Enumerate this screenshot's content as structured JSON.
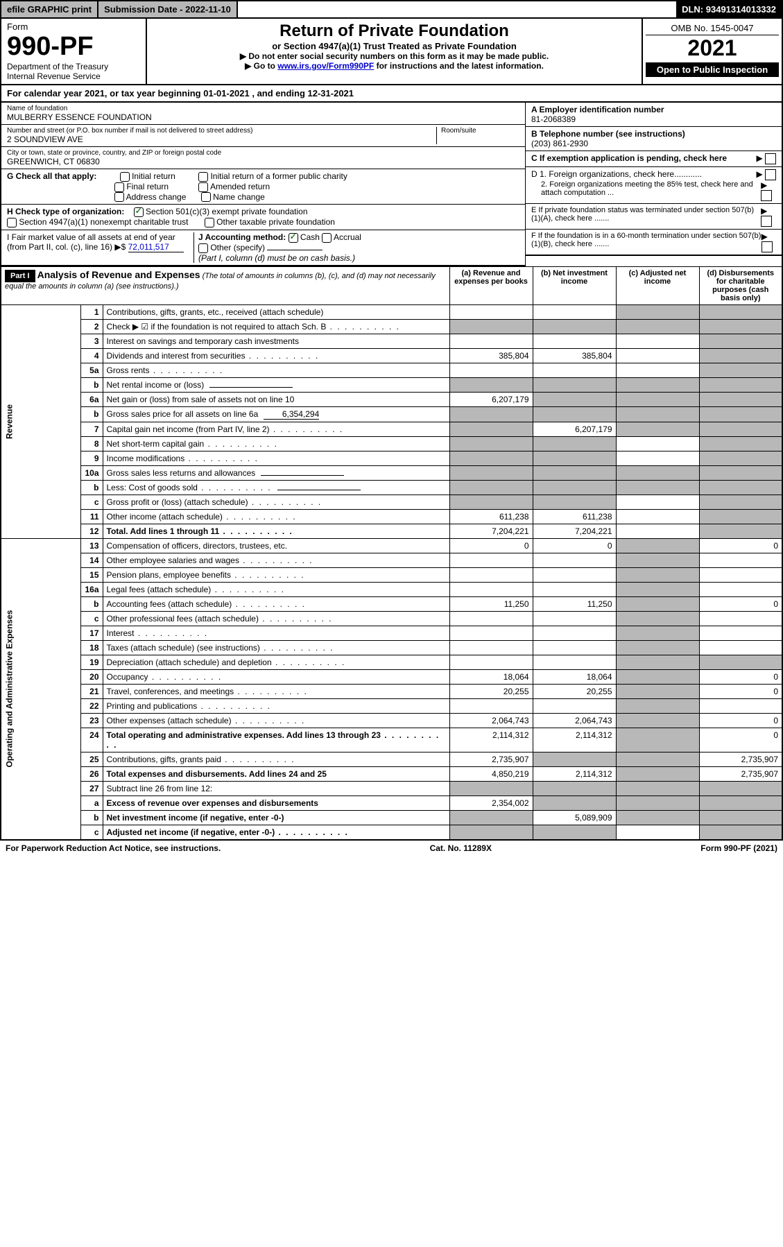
{
  "top": {
    "efile": "efile GRAPHIC print",
    "subdate_label": "Submission Date - ",
    "subdate": "2022-11-10",
    "dln_label": "DLN: ",
    "dln": "93491314013332"
  },
  "header": {
    "form_label": "Form",
    "form_no": "990-PF",
    "dept1": "Department of the Treasury",
    "dept2": "Internal Revenue Service",
    "title": "Return of Private Foundation",
    "subtitle": "or Section 4947(a)(1) Trust Treated as Private Foundation",
    "instr1": "▶ Do not enter social security numbers on this form as it may be made public.",
    "instr2_pre": "▶ Go to ",
    "instr2_link": "www.irs.gov/Form990PF",
    "instr2_post": " for instructions and the latest information.",
    "omb": "OMB No. 1545-0047",
    "year": "2021",
    "open_pub": "Open to Public Inspection"
  },
  "cal_year": {
    "pre": "For calendar year 2021, or tax year beginning ",
    "begin": "01-01-2021",
    "mid": " , and ending ",
    "end": "12-31-2021"
  },
  "foundation": {
    "name_label": "Name of foundation",
    "name": "MULBERRY ESSENCE FOUNDATION",
    "addr_label": "Number and street (or P.O. box number if mail is not delivered to street address)",
    "addr": "2 SOUNDVIEW AVE",
    "room_label": "Room/suite",
    "city_label": "City or town, state or province, country, and ZIP or foreign postal code",
    "city": "GREENWICH, CT  06830",
    "ein_label": "A Employer identification number",
    "ein": "81-2068389",
    "phone_label": "B Telephone number (see instructions)",
    "phone": "(203) 861-2930",
    "c_label": "C If exemption application is pending, check here"
  },
  "checks": {
    "g_label": "G Check all that apply:",
    "g1": "Initial return",
    "g2": "Initial return of a former public charity",
    "g3": "Final return",
    "g4": "Amended return",
    "g5": "Address change",
    "g6": "Name change",
    "h_label": "H Check type of organization:",
    "h1": "Section 501(c)(3) exempt private foundation",
    "h2": "Section 4947(a)(1) nonexempt charitable trust",
    "h3": "Other taxable private foundation",
    "i_label": "I Fair market value of all assets at end of year (from Part II, col. (c), line 16)",
    "i_val": "72,011,517",
    "j_label": "J Accounting method:",
    "j1": "Cash",
    "j2": "Accrual",
    "j3": "Other (specify)",
    "j_note": "(Part I, column (d) must be on cash basis.)",
    "d1": "D 1. Foreign organizations, check here............",
    "d2": "2. Foreign organizations meeting the 85% test, check here and attach computation ...",
    "e": "E If private foundation status was terminated under section 507(b)(1)(A), check here .......",
    "f": "F If the foundation is in a 60-month termination under section 507(b)(1)(B), check here ......."
  },
  "part1": {
    "hdr": "Part I",
    "title": "Analysis of Revenue and Expenses",
    "note": "(The total of amounts in columns (b), (c), and (d) may not necessarily equal the amounts in column (a) (see instructions).)",
    "col_a": "(a) Revenue and expenses per books",
    "col_b": "(b) Net investment income",
    "col_c": "(c) Adjusted net income",
    "col_d": "(d) Disbursements for charitable purposes (cash basis only)"
  },
  "sections": {
    "revenue": "Revenue",
    "expenses": "Operating and Administrative Expenses"
  },
  "rows": [
    {
      "n": "1",
      "d": "Contributions, gifts, grants, etc., received (attach schedule)",
      "a": "",
      "b": "",
      "c": "g",
      "dd": "g"
    },
    {
      "n": "2",
      "d": "Check ▶ ☑ if the foundation is not required to attach Sch. B",
      "dots": true,
      "a": "g",
      "b": "g",
      "c": "g",
      "dd": "g"
    },
    {
      "n": "3",
      "d": "Interest on savings and temporary cash investments",
      "a": "",
      "b": "",
      "c": "",
      "dd": "g"
    },
    {
      "n": "4",
      "d": "Dividends and interest from securities",
      "dots": true,
      "a": "385,804",
      "b": "385,804",
      "c": "",
      "dd": "g"
    },
    {
      "n": "5a",
      "d": "Gross rents",
      "dots": true,
      "a": "",
      "b": "",
      "c": "",
      "dd": "g"
    },
    {
      "n": "b",
      "d": "Net rental income or (loss)",
      "inline": true,
      "a": "g",
      "b": "g",
      "c": "g",
      "dd": "g"
    },
    {
      "n": "6a",
      "d": "Net gain or (loss) from sale of assets not on line 10",
      "a": "6,207,179",
      "b": "g",
      "c": "g",
      "dd": "g"
    },
    {
      "n": "b",
      "d": "Gross sales price for all assets on line 6a",
      "inline": "6,354,294",
      "a": "g",
      "b": "g",
      "c": "g",
      "dd": "g"
    },
    {
      "n": "7",
      "d": "Capital gain net income (from Part IV, line 2)",
      "dots": true,
      "a": "g",
      "b": "6,207,179",
      "c": "g",
      "dd": "g"
    },
    {
      "n": "8",
      "d": "Net short-term capital gain",
      "dots": true,
      "a": "g",
      "b": "g",
      "c": "",
      "dd": "g"
    },
    {
      "n": "9",
      "d": "Income modifications",
      "dots": true,
      "a": "g",
      "b": "g",
      "c": "",
      "dd": "g"
    },
    {
      "n": "10a",
      "d": "Gross sales less returns and allowances",
      "inline": true,
      "a": "g",
      "b": "g",
      "c": "g",
      "dd": "g"
    },
    {
      "n": "b",
      "d": "Less: Cost of goods sold",
      "dots": true,
      "inline": true,
      "a": "g",
      "b": "g",
      "c": "g",
      "dd": "g"
    },
    {
      "n": "c",
      "d": "Gross profit or (loss) (attach schedule)",
      "dots": true,
      "a": "g",
      "b": "g",
      "c": "",
      "dd": "g"
    },
    {
      "n": "11",
      "d": "Other income (attach schedule)",
      "dots": true,
      "a": "611,238",
      "b": "611,238",
      "c": "",
      "dd": "g"
    },
    {
      "n": "12",
      "d": "Total. Add lines 1 through 11",
      "dots": true,
      "bold": true,
      "a": "7,204,221",
      "b": "7,204,221",
      "c": "",
      "dd": "g"
    },
    {
      "n": "13",
      "d": "Compensation of officers, directors, trustees, etc.",
      "sec": "exp",
      "a": "0",
      "b": "0",
      "c": "g",
      "dd": "0"
    },
    {
      "n": "14",
      "d": "Other employee salaries and wages",
      "dots": true,
      "a": "",
      "b": "",
      "c": "g",
      "dd": ""
    },
    {
      "n": "15",
      "d": "Pension plans, employee benefits",
      "dots": true,
      "a": "",
      "b": "",
      "c": "g",
      "dd": ""
    },
    {
      "n": "16a",
      "d": "Legal fees (attach schedule)",
      "dots": true,
      "a": "",
      "b": "",
      "c": "g",
      "dd": ""
    },
    {
      "n": "b",
      "d": "Accounting fees (attach schedule)",
      "dots": true,
      "a": "11,250",
      "b": "11,250",
      "c": "g",
      "dd": "0"
    },
    {
      "n": "c",
      "d": "Other professional fees (attach schedule)",
      "dots": true,
      "a": "",
      "b": "",
      "c": "g",
      "dd": ""
    },
    {
      "n": "17",
      "d": "Interest",
      "dots": true,
      "a": "",
      "b": "",
      "c": "g",
      "dd": ""
    },
    {
      "n": "18",
      "d": "Taxes (attach schedule) (see instructions)",
      "dots": true,
      "a": "",
      "b": "",
      "c": "g",
      "dd": ""
    },
    {
      "n": "19",
      "d": "Depreciation (attach schedule) and depletion",
      "dots": true,
      "a": "",
      "b": "",
      "c": "g",
      "dd": "g"
    },
    {
      "n": "20",
      "d": "Occupancy",
      "dots": true,
      "a": "18,064",
      "b": "18,064",
      "c": "g",
      "dd": "0"
    },
    {
      "n": "21",
      "d": "Travel, conferences, and meetings",
      "dots": true,
      "a": "20,255",
      "b": "20,255",
      "c": "g",
      "dd": "0"
    },
    {
      "n": "22",
      "d": "Printing and publications",
      "dots": true,
      "a": "",
      "b": "",
      "c": "g",
      "dd": ""
    },
    {
      "n": "23",
      "d": "Other expenses (attach schedule)",
      "dots": true,
      "a": "2,064,743",
      "b": "2,064,743",
      "c": "g",
      "dd": "0"
    },
    {
      "n": "24",
      "d": "Total operating and administrative expenses. Add lines 13 through 23",
      "dots": true,
      "bold": true,
      "a": "2,114,312",
      "b": "2,114,312",
      "c": "g",
      "dd": "0"
    },
    {
      "n": "25",
      "d": "Contributions, gifts, grants paid",
      "dots": true,
      "a": "2,735,907",
      "b": "g",
      "c": "g",
      "dd": "2,735,907"
    },
    {
      "n": "26",
      "d": "Total expenses and disbursements. Add lines 24 and 25",
      "bold": true,
      "a": "4,850,219",
      "b": "2,114,312",
      "c": "g",
      "dd": "2,735,907"
    },
    {
      "n": "27",
      "d": "Subtract line 26 from line 12:",
      "a": "g",
      "b": "g",
      "c": "g",
      "dd": "g"
    },
    {
      "n": "a",
      "d": "Excess of revenue over expenses and disbursements",
      "bold": true,
      "a": "2,354,002",
      "b": "g",
      "c": "g",
      "dd": "g"
    },
    {
      "n": "b",
      "d": "Net investment income (if negative, enter -0-)",
      "bold": true,
      "a": "g",
      "b": "5,089,909",
      "c": "g",
      "dd": "g"
    },
    {
      "n": "c",
      "d": "Adjusted net income (if negative, enter -0-)",
      "dots": true,
      "bold": true,
      "a": "g",
      "b": "g",
      "c": "",
      "dd": "g"
    }
  ],
  "footer": {
    "left": "For Paperwork Reduction Act Notice, see instructions.",
    "mid": "Cat. No. 11289X",
    "right": "Form 990-PF (2021)"
  }
}
